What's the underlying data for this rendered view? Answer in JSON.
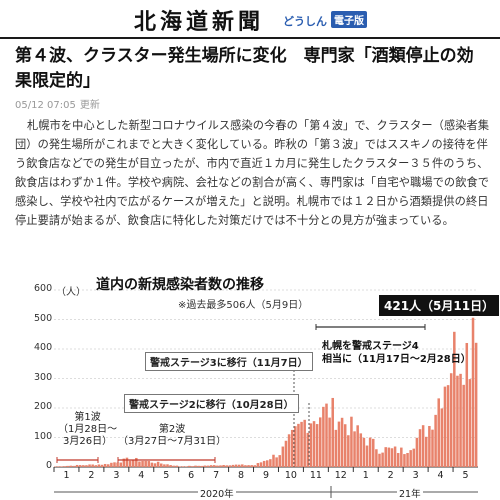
{
  "masthead": {
    "logo": "北海道新聞",
    "sub": "どうしん",
    "badge": "電子版"
  },
  "article": {
    "headline": "第４波、クラスター発生場所に変化　専門家「酒類停止の効果限定的」",
    "date": "05/12 07:05",
    "updated": "更新",
    "body": "札幌市を中心とした新型コロナウイルス感染の今春の「第４波」で、クラスター（感染者集団）の発生場所がこれまでと大きく変化している。昨秋の「第３波」ではススキノの接待を伴う飲食店などでの発生が目立ったが、市内で直近１カ月に発生したクラスター３５件のうち、飲食店はわずか１件。学校や病院、会社などの割合が高く、専門家は「自宅や職場での飲食で感染し、学校や社内で広がるケースが増えた」と説明。札幌市では１２日から酒類提供の終日停止要請が始まるが、飲食店に特化した対策だけでは不十分との見方が強まっている。"
  },
  "chart": {
    "title": "道内の新規感染者数の推移",
    "note": "※過去最多506人（5月9日）",
    "unit": "（人）",
    "peak_label": "421人（5月11日）",
    "callout_stage3": "警戒ステージ3に移行（11月7日）",
    "callout_stage2": "警戒ステージ2に移行（10月28日）",
    "sapporo_line1": "札幌を警戒ステージ4",
    "sapporo_line2": "相当に（11月17日～2月28日）",
    "wave1_title": "第1波",
    "wave1_range1": "（1月28日～",
    "wave1_range2": "3月26日）",
    "wave2_title": "第2波",
    "wave2_range": "（3月27日～7月31日）",
    "year_2020": "2020年",
    "year_2021": "21年",
    "bar_color": "#e8826b",
    "accent_color": "#c0392b"
  },
  "chart_data": {
    "type": "bar",
    "title": "道内の新規感染者数の推移",
    "ylabel": "（人）",
    "ylim": [
      0,
      600
    ],
    "yticks": [
      0,
      100,
      200,
      300,
      400,
      500,
      600
    ],
    "months": [
      "1",
      "2",
      "3",
      "4",
      "5",
      "6",
      "7",
      "8",
      "9",
      "10",
      "11",
      "12",
      "1",
      "2",
      "3",
      "4",
      "5"
    ],
    "monthly_peak_values": [
      2,
      8,
      12,
      35,
      20,
      3,
      6,
      10,
      8,
      60,
      200,
      250,
      160,
      80,
      70,
      180,
      506
    ],
    "last_value": 421,
    "max_value": 506
  }
}
